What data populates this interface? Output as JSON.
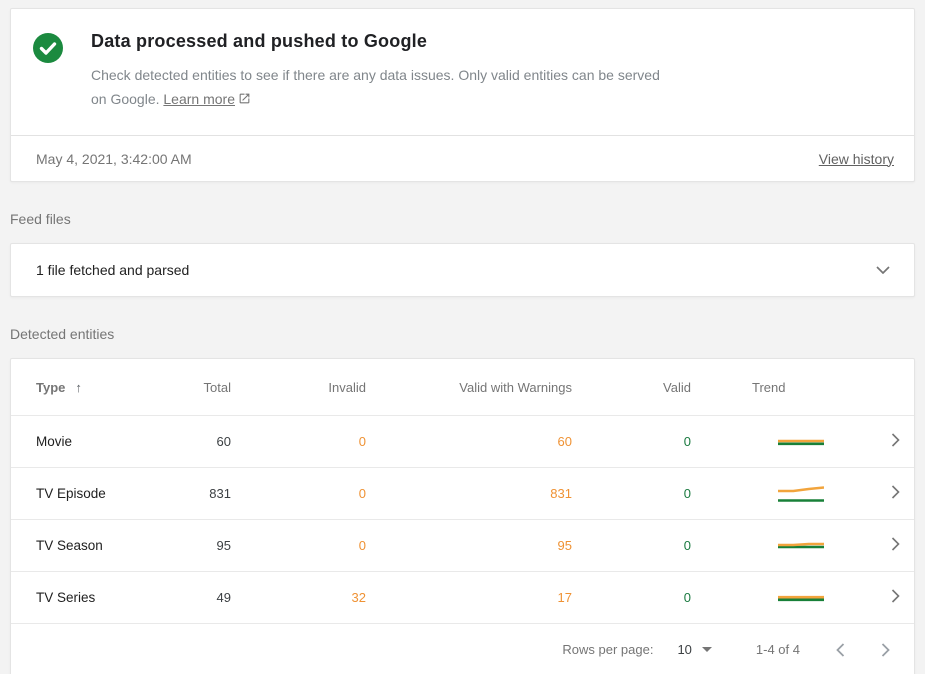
{
  "status_card": {
    "title": "Data processed and pushed to Google",
    "description": "Check detected entities to see if there are any data issues. Only valid entities can be served on Google.",
    "learn_more_label": "Learn more",
    "timestamp": "May 4, 2021, 3:42:00 AM",
    "view_history_label": "View history"
  },
  "feed_files": {
    "section_label": "Feed files",
    "summary": "1 file fetched and parsed"
  },
  "detected_entities": {
    "section_label": "Detected entities",
    "table": {
      "columns": {
        "type": "Type",
        "total": "Total",
        "invalid": "Invalid",
        "valid_with_warnings": "Valid with Warnings",
        "valid": "Valid",
        "trend": "Trend"
      },
      "sorted_by": "Type",
      "sort_direction": "asc",
      "rows": [
        {
          "type": "Movie",
          "total": "60",
          "invalid": "0",
          "valid_with_warnings": "60",
          "valid": "0",
          "trend": {
            "orange": [
              12,
              12,
              12,
              12
            ],
            "green": [
              14.8,
              14.8,
              14.8,
              14.8
            ]
          }
        },
        {
          "type": "TV Episode",
          "total": "831",
          "invalid": "0",
          "valid_with_warnings": "831",
          "valid": "0",
          "trend": {
            "orange": [
              10,
              10,
              8,
              6.5
            ],
            "green": [
              19.5,
              19.5,
              19.5,
              19.5
            ]
          }
        },
        {
          "type": "TV Season",
          "total": "95",
          "invalid": "0",
          "valid_with_warnings": "95",
          "valid": "0",
          "trend": {
            "orange": [
              12,
              12,
              11,
              11
            ],
            "green": [
              14,
              14,
              14,
              14
            ]
          }
        },
        {
          "type": "TV Series",
          "total": "49",
          "invalid": "32",
          "valid_with_warnings": "17",
          "valid": "0",
          "trend": {
            "orange": [
              12.2,
              12.2,
              12.2,
              12.2
            ],
            "green": [
              14.8,
              14.8,
              14.8,
              14.8
            ]
          }
        }
      ]
    },
    "pagination": {
      "rows_per_page_label": "Rows per page:",
      "rows_per_page_value": "10",
      "range_label": "1-4 of 4"
    }
  },
  "colors": {
    "success_green": "#1b8a3f",
    "warning_orange": "#ef9234",
    "valid_green_text": "#1a7a40",
    "trend_orange": "#f2a43c",
    "trend_green": "#188038"
  }
}
